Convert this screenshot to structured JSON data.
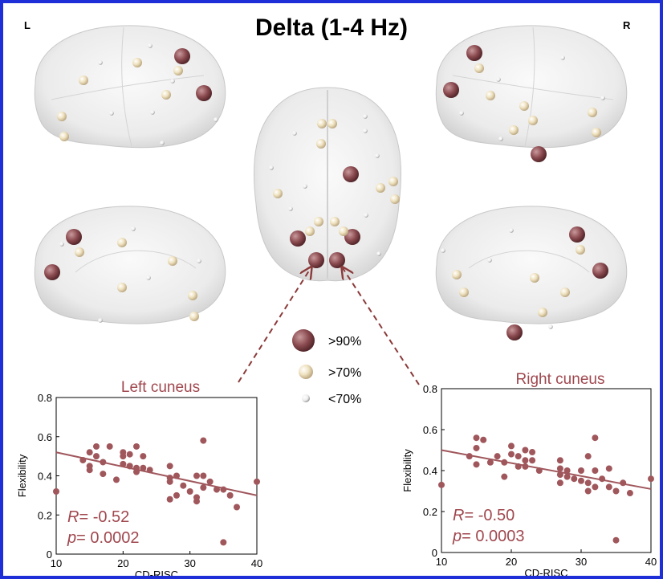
{
  "figure": {
    "title": "Delta (1-4 Hz)",
    "left_hemisphere_label": "L",
    "right_hemisphere_label": "R"
  },
  "colors": {
    "border": "#1f2fd8",
    "large_node": "#8a4a4f",
    "medium_node": "#efe2c0",
    "small_node": "#f4f4ee",
    "scatter": "#a0575c",
    "plot_text": "#a0484f",
    "arrow": "#8b3a3a"
  },
  "legend": [
    {
      "icon": "large-node",
      "label": ">90%"
    },
    {
      "icon": "medium-node",
      "label": ">70%"
    },
    {
      "icon": "small-node",
      "label": "<70%"
    }
  ],
  "chart_data": [
    {
      "type": "scatter",
      "title": "Left cuneus",
      "xlabel": "CD-RISC",
      "ylabel": "Flexibility",
      "xlim": [
        10,
        40
      ],
      "ylim": [
        0,
        0.8
      ],
      "xticks": [
        10,
        20,
        30,
        40
      ],
      "yticks": [
        0,
        0.2,
        0.4,
        0.6,
        0.8
      ],
      "stat_r_label": "R",
      "stat_r_value": "= -0.52",
      "stat_p_label": "p",
      "stat_p_value": "= 0.0002",
      "fit_line": {
        "x": [
          10,
          40
        ],
        "y": [
          0.52,
          0.3
        ]
      },
      "points": [
        [
          10,
          0.32
        ],
        [
          14,
          0.48
        ],
        [
          15,
          0.52
        ],
        [
          15,
          0.45
        ],
        [
          15,
          0.43
        ],
        [
          16,
          0.55
        ],
        [
          16,
          0.5
        ],
        [
          17,
          0.47
        ],
        [
          17,
          0.41
        ],
        [
          18,
          0.55
        ],
        [
          19,
          0.38
        ],
        [
          20,
          0.5
        ],
        [
          20,
          0.52
        ],
        [
          20,
          0.46
        ],
        [
          21,
          0.45
        ],
        [
          21,
          0.51
        ],
        [
          21,
          0.45
        ],
        [
          22,
          0.55
        ],
        [
          22,
          0.44
        ],
        [
          22,
          0.42
        ],
        [
          23,
          0.5
        ],
        [
          23,
          0.44
        ],
        [
          24,
          0.43
        ],
        [
          27,
          0.45
        ],
        [
          27,
          0.39
        ],
        [
          27,
          0.37
        ],
        [
          27,
          0.28
        ],
        [
          28,
          0.4
        ],
        [
          28,
          0.3
        ],
        [
          29,
          0.35
        ],
        [
          30,
          0.32
        ],
        [
          31,
          0.4
        ],
        [
          31,
          0.29
        ],
        [
          31,
          0.27
        ],
        [
          32,
          0.4
        ],
        [
          32,
          0.58
        ],
        [
          32,
          0.34
        ],
        [
          33,
          0.37
        ],
        [
          34,
          0.33
        ],
        [
          35,
          0.33
        ],
        [
          35,
          0.06
        ],
        [
          36,
          0.3
        ],
        [
          37,
          0.24
        ],
        [
          40,
          0.37
        ]
      ]
    },
    {
      "type": "scatter",
      "title": "Right cuneus",
      "xlabel": "CD-RISC",
      "ylabel": "Flexibility",
      "xlim": [
        10,
        40
      ],
      "ylim": [
        0,
        0.8
      ],
      "xticks": [
        10,
        20,
        30,
        40
      ],
      "yticks": [
        0,
        0.2,
        0.4,
        0.6,
        0.8
      ],
      "stat_r_label": "R",
      "stat_r_value": "= -0.50",
      "stat_p_label": "p",
      "stat_p_value": "= 0.0003",
      "fit_line": {
        "x": [
          10,
          40
        ],
        "y": [
          0.5,
          0.31
        ]
      },
      "points": [
        [
          10,
          0.33
        ],
        [
          14,
          0.47
        ],
        [
          15,
          0.56
        ],
        [
          15,
          0.51
        ],
        [
          15,
          0.43
        ],
        [
          16,
          0.55
        ],
        [
          17,
          0.44
        ],
        [
          18,
          0.47
        ],
        [
          19,
          0.44
        ],
        [
          19,
          0.37
        ],
        [
          20,
          0.52
        ],
        [
          20,
          0.48
        ],
        [
          21,
          0.42
        ],
        [
          21,
          0.47
        ],
        [
          22,
          0.5
        ],
        [
          22,
          0.45
        ],
        [
          22,
          0.42
        ],
        [
          23,
          0.49
        ],
        [
          23,
          0.45
        ],
        [
          24,
          0.4
        ],
        [
          27,
          0.45
        ],
        [
          27,
          0.41
        ],
        [
          27,
          0.38
        ],
        [
          27,
          0.34
        ],
        [
          28,
          0.4
        ],
        [
          28,
          0.37
        ],
        [
          29,
          0.36
        ],
        [
          30,
          0.35
        ],
        [
          30,
          0.4
        ],
        [
          31,
          0.47
        ],
        [
          31,
          0.34
        ],
        [
          31,
          0.3
        ],
        [
          32,
          0.56
        ],
        [
          32,
          0.4
        ],
        [
          32,
          0.32
        ],
        [
          33,
          0.36
        ],
        [
          34,
          0.41
        ],
        [
          34,
          0.32
        ],
        [
          35,
          0.3
        ],
        [
          35,
          0.06
        ],
        [
          36,
          0.34
        ],
        [
          37,
          0.29
        ],
        [
          40,
          0.36
        ]
      ]
    }
  ]
}
